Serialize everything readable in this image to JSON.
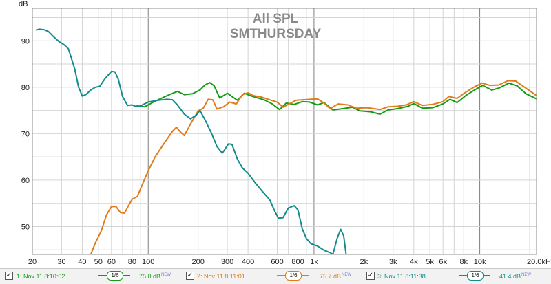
{
  "chart_data": {
    "type": "line",
    "title": "All SPL",
    "subtitle": "SMTHURSDAY",
    "ylabel": "dB",
    "xunit": "Hz",
    "xscale": "log",
    "xlim": [
      20,
      22000
    ],
    "ylim": [
      44,
      97
    ],
    "grid": true,
    "x_ticks": [
      {
        "v": 20,
        "label": "20"
      },
      {
        "v": 30,
        "label": "30"
      },
      {
        "v": 40,
        "label": "40"
      },
      {
        "v": 50,
        "label": "50"
      },
      {
        "v": 60,
        "label": "60"
      },
      {
        "v": 80,
        "label": "80"
      },
      {
        "v": 100,
        "label": "100"
      },
      {
        "v": 200,
        "label": "200"
      },
      {
        "v": 300,
        "label": "300"
      },
      {
        "v": 400,
        "label": "400"
      },
      {
        "v": 600,
        "label": "600"
      },
      {
        "v": 800,
        "label": "800"
      },
      {
        "v": 1000,
        "label": "1k"
      },
      {
        "v": 2000,
        "label": "2k"
      },
      {
        "v": 3000,
        "label": "3k"
      },
      {
        "v": 4000,
        "label": "4k"
      },
      {
        "v": 5000,
        "label": "5k"
      },
      {
        "v": 6000,
        "label": "6k"
      },
      {
        "v": 8000,
        "label": "8k"
      },
      {
        "v": 10000,
        "label": "10k"
      },
      {
        "v": 20000,
        "label": "20.0kHz"
      }
    ],
    "y_ticks": [
      50,
      60,
      70,
      80,
      90
    ],
    "series": [
      {
        "name": "1: Nov 11 8:10:02",
        "color": "#159b15",
        "points": [
          [
            85,
            76
          ],
          [
            95,
            75.8
          ],
          [
            110,
            77
          ],
          [
            130,
            78.2
          ],
          [
            150,
            79.1
          ],
          [
            165,
            78.4
          ],
          [
            185,
            78.6
          ],
          [
            205,
            79.4
          ],
          [
            220,
            80.5
          ],
          [
            235,
            81
          ],
          [
            250,
            80.3
          ],
          [
            270,
            77.7
          ],
          [
            300,
            78.7
          ],
          [
            320,
            78
          ],
          [
            345,
            77.2
          ],
          [
            380,
            78.7
          ],
          [
            420,
            78.1
          ],
          [
            500,
            77.3
          ],
          [
            560,
            76.4
          ],
          [
            620,
            75.2
          ],
          [
            680,
            76.6
          ],
          [
            760,
            76.3
          ],
          [
            850,
            76.9
          ],
          [
            940,
            76.8
          ],
          [
            1050,
            76.2
          ],
          [
            1150,
            76.7
          ],
          [
            1300,
            75.1
          ],
          [
            1500,
            75.4
          ],
          [
            1700,
            75.7
          ],
          [
            1900,
            74.9
          ],
          [
            2200,
            74.7
          ],
          [
            2500,
            74.2
          ],
          [
            2800,
            75.1
          ],
          [
            3200,
            75.4
          ],
          [
            3700,
            75.9
          ],
          [
            4000,
            76.5
          ],
          [
            4500,
            75.5
          ],
          [
            5200,
            75.6
          ],
          [
            6000,
            76.4
          ],
          [
            6600,
            77.4
          ],
          [
            7300,
            76.7
          ],
          [
            8300,
            78.3
          ],
          [
            9400,
            79.5
          ],
          [
            10400,
            80.4
          ],
          [
            11800,
            79.4
          ],
          [
            13000,
            79.8
          ],
          [
            15000,
            80.9
          ],
          [
            16800,
            80.3
          ],
          [
            19000,
            78.6
          ],
          [
            22000,
            77.5
          ]
        ]
      },
      {
        "name": "2: Nov 11 8:11:01",
        "color": "#e07b1a",
        "points": [
          [
            45,
            44
          ],
          [
            48,
            46.5
          ],
          [
            52,
            49
          ],
          [
            56,
            52.5
          ],
          [
            60,
            54.3
          ],
          [
            64,
            54.3
          ],
          [
            68,
            53
          ],
          [
            72,
            52.9
          ],
          [
            76,
            54.5
          ],
          [
            80,
            55.9
          ],
          [
            86,
            56.5
          ],
          [
            92,
            59
          ],
          [
            100,
            62
          ],
          [
            110,
            65
          ],
          [
            125,
            68
          ],
          [
            140,
            70.5
          ],
          [
            148,
            71.4
          ],
          [
            155,
            70.5
          ],
          [
            165,
            69.6
          ],
          [
            180,
            72.1
          ],
          [
            200,
            74.9
          ],
          [
            215,
            75.5
          ],
          [
            230,
            77.4
          ],
          [
            245,
            77.3
          ],
          [
            260,
            75.3
          ],
          [
            285,
            75.8
          ],
          [
            310,
            76.8
          ],
          [
            340,
            76.4
          ],
          [
            370,
            78.4
          ],
          [
            400,
            78.8
          ],
          [
            430,
            78.2
          ],
          [
            480,
            77.9
          ],
          [
            540,
            77.3
          ],
          [
            600,
            76.8
          ],
          [
            650,
            75.7
          ],
          [
            700,
            76.3
          ],
          [
            780,
            77.2
          ],
          [
            860,
            77.3
          ],
          [
            950,
            77.4
          ],
          [
            1050,
            77.5
          ],
          [
            1150,
            76.6
          ],
          [
            1250,
            75.4
          ],
          [
            1400,
            76.4
          ],
          [
            1600,
            76.2
          ],
          [
            1800,
            75.5
          ],
          [
            2100,
            75.6
          ],
          [
            2500,
            75.2
          ],
          [
            2800,
            75.8
          ],
          [
            3200,
            75.9
          ],
          [
            3600,
            76.2
          ],
          [
            4000,
            76.9
          ],
          [
            4500,
            76.1
          ],
          [
            5200,
            76.3
          ],
          [
            6000,
            76.9
          ],
          [
            6500,
            78
          ],
          [
            7300,
            77.6
          ],
          [
            8200,
            78.9
          ],
          [
            9300,
            80.1
          ],
          [
            10300,
            80.9
          ],
          [
            11500,
            80.4
          ],
          [
            13000,
            80.5
          ],
          [
            14800,
            81.4
          ],
          [
            16500,
            81.3
          ],
          [
            19000,
            79.8
          ],
          [
            22000,
            78.2
          ]
        ]
      },
      {
        "name": "3: Nov 11 8:11:38",
        "color": "#138b8c",
        "points": [
          [
            21,
            92.3
          ],
          [
            22,
            92.5
          ],
          [
            23.5,
            92.4
          ],
          [
            25,
            92
          ],
          [
            27,
            90.8
          ],
          [
            29,
            89.8
          ],
          [
            31,
            89.2
          ],
          [
            33,
            88.3
          ],
          [
            36,
            84
          ],
          [
            38,
            80
          ],
          [
            40,
            78.1
          ],
          [
            42,
            78.4
          ],
          [
            45,
            79.4
          ],
          [
            48,
            80
          ],
          [
            51,
            80.2
          ],
          [
            55,
            81.9
          ],
          [
            60,
            83.4
          ],
          [
            63,
            83.3
          ],
          [
            66,
            81.7
          ],
          [
            70,
            78
          ],
          [
            75,
            76.1
          ],
          [
            80,
            76.2
          ],
          [
            85,
            75.8
          ],
          [
            90,
            76
          ],
          [
            100,
            76.8
          ],
          [
            115,
            77.2
          ],
          [
            130,
            77.4
          ],
          [
            140,
            77.3
          ],
          [
            150,
            76.2
          ],
          [
            165,
            74.2
          ],
          [
            180,
            73.2
          ],
          [
            195,
            74
          ],
          [
            205,
            75
          ],
          [
            220,
            73
          ],
          [
            240,
            70.2
          ],
          [
            260,
            67.2
          ],
          [
            280,
            65.8
          ],
          [
            305,
            67.8
          ],
          [
            320,
            67.7
          ],
          [
            345,
            64.5
          ],
          [
            370,
            62.6
          ],
          [
            400,
            61.5
          ],
          [
            440,
            59.5
          ],
          [
            490,
            57.5
          ],
          [
            540,
            55.8
          ],
          [
            580,
            53.3
          ],
          [
            610,
            51.8
          ],
          [
            650,
            51.9
          ],
          [
            700,
            54
          ],
          [
            760,
            54.5
          ],
          [
            800,
            53.6
          ],
          [
            850,
            49.5
          ],
          [
            900,
            47.4
          ],
          [
            960,
            46.3
          ],
          [
            1050,
            45.8
          ],
          [
            1150,
            44.9
          ],
          [
            1250,
            44.4
          ],
          [
            1300,
            44
          ],
          [
            1380,
            47.5
          ],
          [
            1450,
            49.4
          ],
          [
            1510,
            48
          ],
          [
            1560,
            44.1
          ]
        ]
      }
    ]
  },
  "legend": [
    {
      "checked": "✓",
      "label": "1: Nov 11 8:10:02",
      "smoothing": "1/6",
      "level": "75.0 dB",
      "flag": "NEW"
    },
    {
      "checked": "✓",
      "label": "2: Nov 11 8:11:01",
      "smoothing": "1/6",
      "level": "75.7 dB",
      "flag": "NEW"
    },
    {
      "checked": "✓",
      "label": "3: Nov 11 8:11:38",
      "smoothing": "1/6",
      "level": "41.4 dB",
      "flag": "NEW"
    }
  ],
  "colors": {
    "plot_border": "#8c8c8c",
    "grid_minor": "#d4d4d4",
    "grid_major": "#7f7f7f",
    "background": "#ffffff"
  }
}
